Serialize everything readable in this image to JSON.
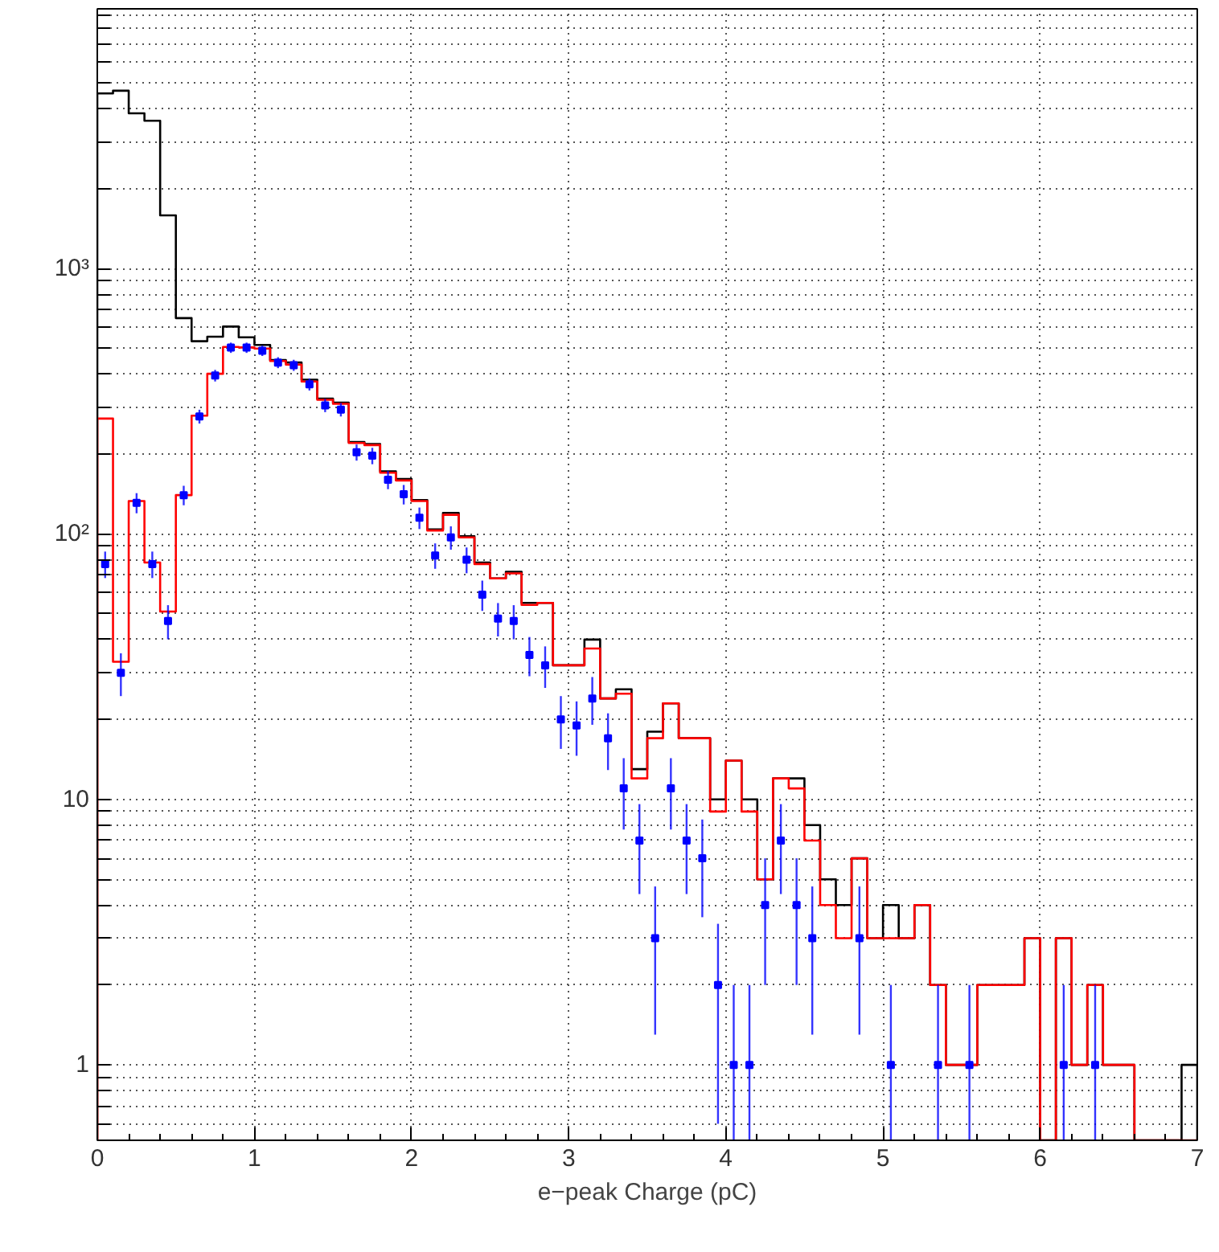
{
  "chart_data": {
    "type": "histogram",
    "xlabel": "e−peak Charge (pC)",
    "log": "y",
    "grid": true,
    "bins": [
      0,
      0.1,
      0.2,
      0.3,
      0.4,
      0.5,
      0.6,
      0.7,
      0.8,
      0.9,
      1,
      1.1,
      1.2,
      1.3,
      1.4,
      1.5,
      1.6,
      1.7,
      1.8,
      1.9,
      2,
      2.1,
      2.2,
      2.3,
      2.4,
      2.5,
      2.6,
      2.7,
      2.8,
      2.9,
      3,
      3.1,
      3.2,
      3.3,
      3.4,
      3.5,
      3.6,
      3.7,
      3.8,
      3.9,
      4,
      4.1,
      4.2,
      4.3,
      4.4,
      4.5,
      4.6,
      4.7,
      4.8,
      4.9,
      5,
      5.1,
      5.2,
      5.3,
      5.4,
      5.5,
      5.6,
      5.7,
      5.8,
      5.9,
      6,
      6.1,
      6.2,
      6.3,
      6.4,
      6.5,
      6.6,
      6.7,
      6.8,
      6.9,
      7
    ],
    "xlim": [
      0,
      7
    ],
    "xticks": [
      0,
      1,
      2,
      3,
      4,
      5,
      6,
      7
    ],
    "ylim": [
      0.52,
      9500
    ],
    "yticks": [
      {
        "value": 0.6,
        "label": null
      },
      {
        "value": 0.7,
        "label": null
      },
      {
        "value": 0.8,
        "label": null
      },
      {
        "value": 0.9,
        "label": null
      },
      1,
      {
        "value": 2,
        "label": null
      },
      {
        "value": 3,
        "label": null
      },
      {
        "value": 4,
        "label": null
      },
      {
        "value": 5,
        "label": null
      },
      {
        "value": 6,
        "label": null
      },
      {
        "value": 7,
        "label": null
      },
      {
        "value": 8,
        "label": null
      },
      {
        "value": 9,
        "label": null
      },
      10,
      {
        "value": 20,
        "label": null
      },
      {
        "value": 30,
        "label": null
      },
      {
        "value": 40,
        "label": null
      },
      {
        "value": 50,
        "label": null
      },
      {
        "value": 60,
        "label": null
      },
      {
        "value": 70,
        "label": null
      },
      {
        "value": 80,
        "label": null
      },
      {
        "value": 90,
        "label": null
      },
      {
        "value": 100,
        "label": "10²"
      },
      {
        "value": 200,
        "label": null
      },
      {
        "value": 300,
        "label": null
      },
      {
        "value": 400,
        "label": null
      },
      {
        "value": 500,
        "label": null
      },
      {
        "value": 600,
        "label": null
      },
      {
        "value": 700,
        "label": null
      },
      {
        "value": 800,
        "label": null
      },
      {
        "value": 900,
        "label": null
      },
      {
        "value": 1000,
        "label": "10³"
      },
      {
        "value": 2000,
        "label": null
      },
      {
        "value": 3000,
        "label": null
      },
      {
        "value": 4000,
        "label": null
      },
      {
        "value": 5000,
        "label": null
      },
      {
        "value": 6000,
        "label": null
      },
      {
        "value": 7000,
        "label": null
      },
      {
        "value": 8000,
        "label": null
      },
      {
        "value": 9000,
        "label": null
      }
    ],
    "series": [
      {
        "color": "#000000",
        "values": [
          4560,
          4670,
          3840,
          3600,
          1585,
          650,
          532,
          553,
          604,
          550,
          515,
          452,
          442,
          381,
          323,
          312,
          222,
          218,
          172,
          161,
          134,
          104,
          120,
          98,
          78,
          68,
          72,
          55,
          55,
          32,
          32,
          40,
          24,
          26,
          13,
          18,
          23,
          17,
          17,
          10,
          14,
          10,
          5,
          12,
          12,
          8,
          5,
          4,
          6,
          3,
          4,
          3,
          4,
          2,
          1,
          1,
          2,
          2,
          2,
          3,
          null,
          3,
          1,
          2,
          1,
          1,
          null,
          null,
          null,
          1
        ]
      },
      {
        "color": "#ff0000",
        "values": [
          272,
          33,
          133,
          78,
          51,
          140,
          279,
          401,
          506,
          504,
          499,
          448,
          434,
          375,
          320,
          309,
          220,
          216,
          170,
          159,
          133,
          103,
          118,
          97,
          77,
          68,
          71,
          54,
          55,
          32,
          32,
          37,
          24,
          25,
          12,
          17,
          23,
          17,
          17,
          9,
          14,
          9,
          5,
          12,
          11,
          7,
          4,
          3,
          6,
          3,
          3,
          3,
          4,
          2,
          1,
          1,
          2,
          2,
          2,
          3,
          null,
          3,
          1,
          2,
          1,
          1,
          null,
          null,
          null,
          null
        ]
      },
      {
        "type": "scatter",
        "color": "#0000ff",
        "marker": "square",
        "x": [
          0.05,
          0.15,
          0.25,
          0.35,
          0.45,
          0.55,
          0.65,
          0.75,
          0.85,
          0.95,
          1.05,
          1.15,
          1.25,
          1.35,
          1.45,
          1.55,
          1.65,
          1.75,
          1.85,
          1.95,
          2.05,
          2.15,
          2.25,
          2.35,
          2.45,
          2.55,
          2.65,
          2.75,
          2.85,
          2.95,
          3.05,
          3.15,
          3.25,
          3.35,
          3.45,
          3.55,
          3.65,
          3.75,
          3.85,
          3.95,
          4.05,
          4.15,
          4.25,
          4.35,
          4.45,
          4.55,
          4.85,
          5.05,
          5.35,
          5.55,
          6.15,
          6.35
        ],
        "values": [
          77,
          30,
          131,
          77,
          47,
          140,
          277,
          395,
          503,
          503,
          490,
          442,
          432,
          366,
          305,
          294,
          203,
          197,
          160,
          141,
          115,
          83,
          97,
          80,
          59,
          48,
          47,
          35,
          32,
          20,
          19,
          24,
          17,
          11,
          7,
          3,
          11,
          7,
          6,
          2,
          1,
          1,
          4,
          7,
          4,
          3,
          3,
          1,
          1,
          1,
          1,
          1
        ],
        "errors": [
          8.8,
          5.5,
          11.4,
          8.8,
          6.9,
          11.8,
          16.6,
          19.9,
          22.4,
          22.4,
          22.1,
          21,
          20.8,
          19.1,
          17.5,
          17.1,
          14.2,
          14,
          12.6,
          11.9,
          10.7,
          9.1,
          9.8,
          8.9,
          7.7,
          6.9,
          6.9,
          5.9,
          5.7,
          4.5,
          4.4,
          4.9,
          4.1,
          3.3,
          2.6,
          1.7,
          3.3,
          2.6,
          2.4,
          1.4,
          [
            0.52,
            2
          ],
          [
            0.52,
            2
          ],
          2,
          2.6,
          2,
          1.7,
          1.7,
          [
            0.52,
            2
          ],
          [
            0.52,
            2
          ],
          [
            0.52,
            2
          ],
          [
            0.52,
            2
          ],
          [
            0.52,
            2
          ]
        ]
      }
    ]
  }
}
